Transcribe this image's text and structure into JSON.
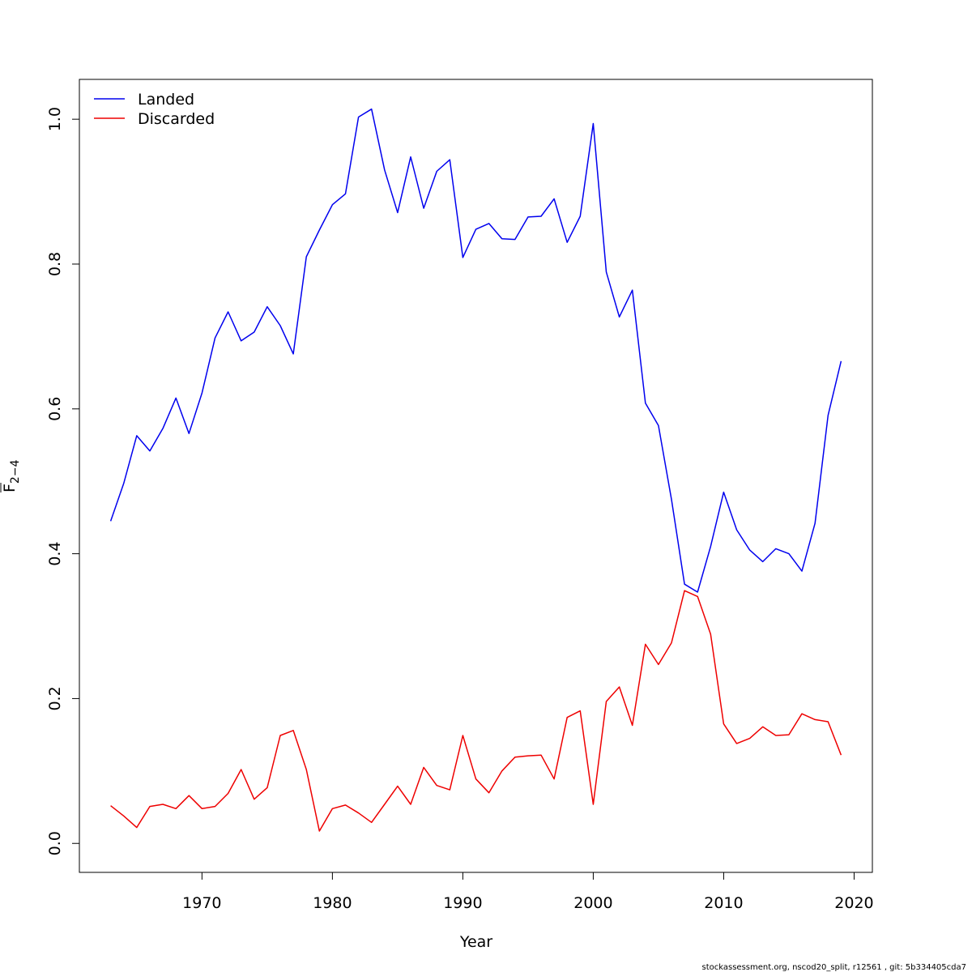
{
  "chart_data": {
    "type": "line",
    "title": "",
    "xlabel": "Year",
    "ylabel_main": "F",
    "ylabel_sub": "2−4",
    "xlim": [
      1960.6,
      2021.4
    ],
    "ylim": [
      -0.04,
      1.055
    ],
    "x_ticks": [
      1970,
      1980,
      1990,
      2000,
      2010,
      2020
    ],
    "y_ticks": [
      0.0,
      0.2,
      0.4,
      0.6,
      0.8,
      1.0
    ],
    "x_tick_labels": [
      "1970",
      "1980",
      "1990",
      "2000",
      "2010",
      "2020"
    ],
    "y_tick_labels": [
      "0.0",
      "0.2",
      "0.4",
      "0.6",
      "0.8",
      "1.0"
    ],
    "legend_position": "top-left",
    "x": [
      1963,
      1964,
      1965,
      1966,
      1967,
      1968,
      1969,
      1970,
      1971,
      1972,
      1973,
      1974,
      1975,
      1976,
      1977,
      1978,
      1979,
      1980,
      1981,
      1982,
      1983,
      1984,
      1985,
      1986,
      1987,
      1988,
      1989,
      1990,
      1991,
      1992,
      1993,
      1994,
      1995,
      1996,
      1997,
      1998,
      1999,
      2000,
      2001,
      2002,
      2003,
      2004,
      2005,
      2006,
      2007,
      2008,
      2009,
      2010,
      2011,
      2012,
      2013,
      2014,
      2015,
      2016,
      2017,
      2018,
      2019
    ],
    "series": [
      {
        "name": "Landed",
        "color": "#0000ee",
        "values": [
          0.445,
          0.497,
          0.563,
          0.542,
          0.573,
          0.615,
          0.566,
          0.622,
          0.698,
          0.734,
          0.694,
          0.706,
          0.741,
          0.715,
          0.676,
          0.81,
          0.847,
          0.882,
          0.897,
          1.003,
          1.014,
          0.93,
          0.871,
          0.948,
          0.877,
          0.928,
          0.944,
          0.809,
          0.848,
          0.856,
          0.835,
          0.834,
          0.865,
          0.866,
          0.89,
          0.83,
          0.866,
          0.994,
          0.789,
          0.727,
          0.764,
          0.608,
          0.577,
          0.475,
          0.358,
          0.347,
          0.41,
          0.485,
          0.433,
          0.405,
          0.389,
          0.407,
          0.4,
          0.376,
          0.442,
          0.591,
          0.666
        ]
      },
      {
        "name": "Discarded",
        "color": "#ee0000",
        "values": [
          0.052,
          0.038,
          0.022,
          0.051,
          0.054,
          0.048,
          0.066,
          0.048,
          0.051,
          0.069,
          0.102,
          0.061,
          0.077,
          0.149,
          0.156,
          0.102,
          0.017,
          0.048,
          0.053,
          0.042,
          0.029,
          0.054,
          0.079,
          0.054,
          0.105,
          0.08,
          0.074,
          0.149,
          0.089,
          0.07,
          0.1,
          0.119,
          0.121,
          0.122,
          0.089,
          0.174,
          0.183,
          0.054,
          0.196,
          0.216,
          0.163,
          0.275,
          0.247,
          0.277,
          0.349,
          0.341,
          0.289,
          0.165,
          0.138,
          0.145,
          0.161,
          0.149,
          0.15,
          0.179,
          0.171,
          0.168,
          0.122
        ]
      }
    ]
  },
  "footer": {
    "note": "stockassessment.org, nscod20_split, r12561 , git: 5b334405cda7"
  }
}
